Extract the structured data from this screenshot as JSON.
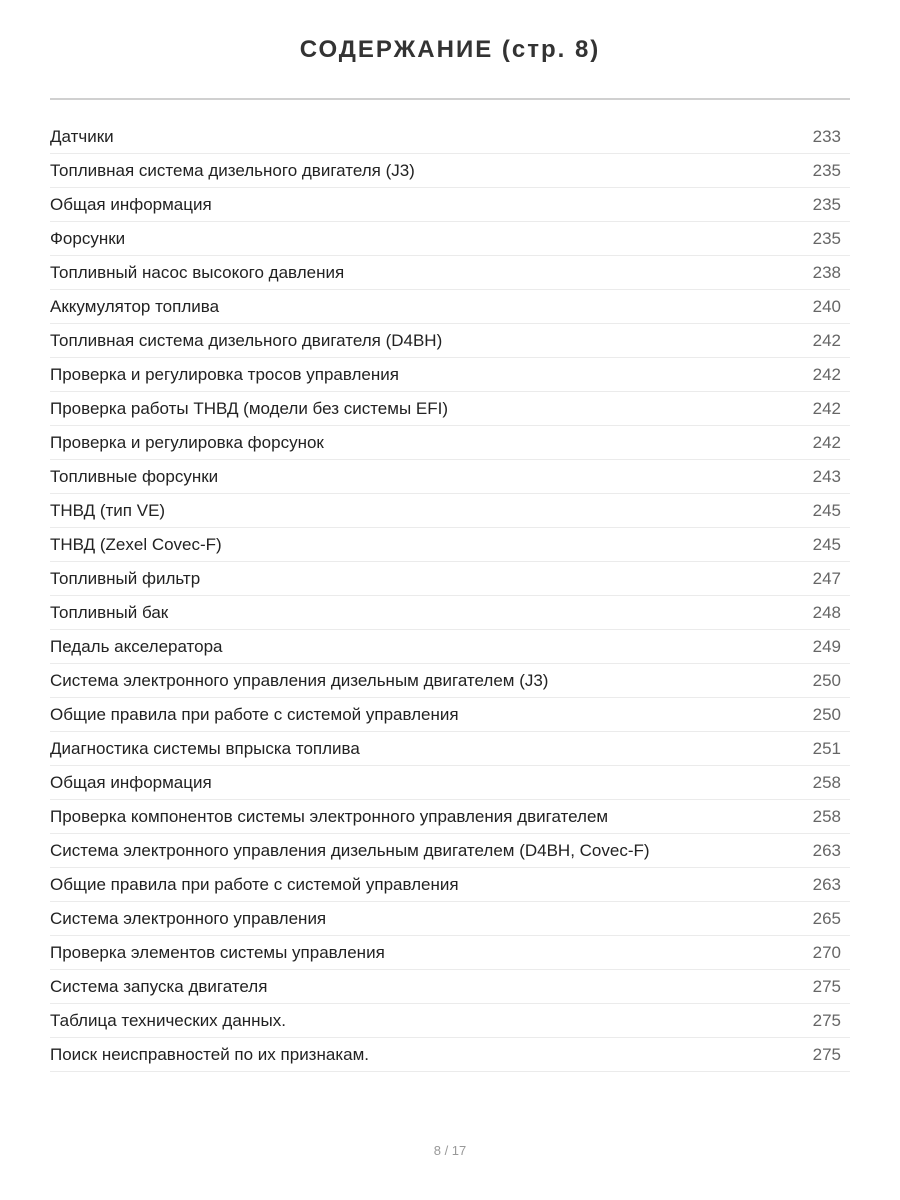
{
  "header": {
    "title": "СОДЕРЖАНИЕ (стр. 8)"
  },
  "entries": [
    {
      "title": "Датчики",
      "page": 233
    },
    {
      "title": "Топливная система дизельного двигателя (J3)",
      "page": 235
    },
    {
      "title": "Общая информация",
      "page": 235
    },
    {
      "title": "Форсунки",
      "page": 235
    },
    {
      "title": "Топливный насос высокого давления",
      "page": 238
    },
    {
      "title": "Аккумулятор топлива",
      "page": 240
    },
    {
      "title": "Топливная система дизельного двигателя (D4BH)",
      "page": 242
    },
    {
      "title": "Проверка и регулировка тросов управления",
      "page": 242
    },
    {
      "title": "Проверка работы ТНВД (модели без системы EFI)",
      "page": 242
    },
    {
      "title": "Проверка и регулировка форсунок",
      "page": 242
    },
    {
      "title": "Топливные форсунки",
      "page": 243
    },
    {
      "title": "ТНВД (тип VE)",
      "page": 245
    },
    {
      "title": "ТНВД (Zexel Covec-F)",
      "page": 245
    },
    {
      "title": "Топливный фильтр",
      "page": 247
    },
    {
      "title": "Топливный бак",
      "page": 248
    },
    {
      "title": "Педаль акселератора",
      "page": 249
    },
    {
      "title": "Система электронного управления дизельным двигателем (J3)",
      "page": 250
    },
    {
      "title": "Общие правила при работе с системой управления",
      "page": 250
    },
    {
      "title": "Диагностика системы впрыска топлива",
      "page": 251
    },
    {
      "title": "Общая информация",
      "page": 258
    },
    {
      "title": "Проверка компонентов системы электронного управления двигателем",
      "page": 258
    },
    {
      "title": "Система электронного управления дизельным двигателем (D4BH, Covec-F)",
      "page": 263
    },
    {
      "title": "Общие правила при работе с системой управления",
      "page": 263
    },
    {
      "title": "Система электронного управления",
      "page": 265
    },
    {
      "title": "Проверка элементов системы управления",
      "page": 270
    },
    {
      "title": "Система запуска двигателя",
      "page": 275
    },
    {
      "title": "Таблица технических данных.",
      "page": 275
    },
    {
      "title": "Поиск неисправностей по их признакам.",
      "page": 275
    }
  ],
  "footer": {
    "pagination": "8 / 17"
  }
}
